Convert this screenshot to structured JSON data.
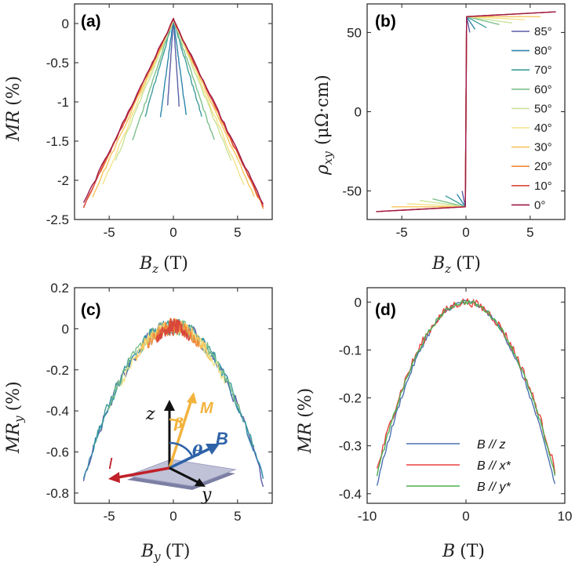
{
  "chart_data": [
    {
      "panel": "(a)",
      "type": "line",
      "xlabel": "B_z (T)",
      "ylabel": "MR (%)",
      "xlim": [
        -7.7,
        7.7
      ],
      "ylim": [
        -2.5,
        0.25
      ],
      "xticks": [
        -5,
        0,
        5
      ],
      "yticks": [
        0,
        -0.5,
        -1,
        -1.5,
        -2,
        -2.5
      ],
      "ytick_labels": [
        "0",
        "-0.5",
        "-1",
        "-1.5",
        "-2",
        "-2.5"
      ],
      "series": [
        {
          "angle": 85,
          "color": "#5b5ea6",
          "x_extent": 0.45,
          "y_end": -1.05
        },
        {
          "angle": 80,
          "color": "#2e86ab",
          "x_extent": 1.0,
          "y_end": -1.18
        },
        {
          "angle": 70,
          "color": "#3f9e9a",
          "x_extent": 2.2,
          "y_end": -1.18
        },
        {
          "angle": 60,
          "color": "#7cc08a",
          "x_extent": 3.2,
          "y_end": -1.5
        },
        {
          "angle": 50,
          "color": "#c9e39a",
          "x_extent": 4.5,
          "y_end": -1.75
        },
        {
          "angle": 40,
          "color": "#f3e38a",
          "x_extent": 5.5,
          "y_end": -2.05
        },
        {
          "angle": 30,
          "color": "#f7c45d",
          "x_extent": 6.3,
          "y_end": -2.2
        },
        {
          "angle": 20,
          "color": "#ef8a3c",
          "x_extent": 7.0,
          "y_end": -2.35
        },
        {
          "angle": 10,
          "color": "#d9483b",
          "x_extent": 7.0,
          "y_end": -2.33
        },
        {
          "angle": 0,
          "color": "#9e1a4b",
          "x_extent": 7.0,
          "y_end": -2.3
        }
      ]
    },
    {
      "panel": "(b)",
      "type": "line",
      "xlabel": "B_z (T)",
      "ylabel": "ρ_xy (μΩ·cm)",
      "xlim": [
        -7.7,
        7.7
      ],
      "ylim": [
        -68,
        68
      ],
      "xticks": [
        -5,
        0,
        5
      ],
      "yticks": [
        50,
        0,
        -50
      ],
      "jump_value": 60,
      "series_end_values": [
        {
          "angle": 85,
          "color": "#5b5ea6",
          "x_extent": 0.3,
          "y_end": 50
        },
        {
          "angle": 80,
          "color": "#2e86ab",
          "x_extent": 0.7,
          "y_end": 52
        },
        {
          "angle": 70,
          "color": "#3f9e9a",
          "x_extent": 1.6,
          "y_end": 53
        },
        {
          "angle": 60,
          "color": "#7cc08a",
          "x_extent": 2.6,
          "y_end": 55
        },
        {
          "angle": 50,
          "color": "#c9e39a",
          "x_extent": 3.6,
          "y_end": 56
        },
        {
          "angle": 40,
          "color": "#f3e38a",
          "x_extent": 4.6,
          "y_end": 58
        },
        {
          "angle": 30,
          "color": "#f7c45d",
          "x_extent": 5.8,
          "y_end": 60
        },
        {
          "angle": 20,
          "color": "#ef8a3c",
          "x_extent": 7.0,
          "y_end": 63
        },
        {
          "angle": 10,
          "color": "#d9483b",
          "x_extent": 7.0,
          "y_end": 63
        },
        {
          "angle": 0,
          "color": "#9e1a4b",
          "x_extent": 7.0,
          "y_end": 63
        }
      ],
      "legend": [
        "85°",
        "80°",
        "70°",
        "60°",
        "50°",
        "40°",
        "30°",
        "20°",
        "10°",
        "0°"
      ]
    },
    {
      "panel": "(c)",
      "type": "line",
      "xlabel": "B_y (T)",
      "ylabel": "MR_y (%)",
      "xlim": [
        -7.7,
        7.7
      ],
      "ylim": [
        -0.85,
        0.2
      ],
      "xticks": [
        -5,
        0,
        5
      ],
      "yticks": [
        0.2,
        0,
        -0.2,
        -0.4,
        -0.6,
        -0.8
      ],
      "ytick_labels": [
        "0.2",
        "0",
        "-0.2",
        "-0.4",
        "-0.6",
        "-0.8"
      ],
      "series": [
        {
          "color": "#5b5ea6",
          "x_extent": 7.0,
          "y_end": -0.75
        },
        {
          "color": "#2e86ab",
          "x_extent": 7.0,
          "y_end": -0.73
        },
        {
          "color": "#3f9e9a",
          "x_extent": 6.3,
          "y_end": -0.58
        },
        {
          "color": "#7cc08a",
          "x_extent": 5.2,
          "y_end": -0.4
        },
        {
          "color": "#f3e38a",
          "x_extent": 4.0,
          "y_end": -0.26
        },
        {
          "color": "#f7c45d",
          "x_extent": 3.0,
          "y_end": -0.15
        },
        {
          "color": "#ef8a3c",
          "x_extent": 2.0,
          "y_end": -0.08
        },
        {
          "color": "#d9483b",
          "x_extent": 1.3,
          "y_end": -0.05
        }
      ],
      "inset_labels": {
        "z": "z",
        "y": "y",
        "B": "B",
        "M": "M",
        "theta": "θ",
        "beta": "β",
        "I": "I"
      }
    },
    {
      "panel": "(d)",
      "type": "line",
      "xlabel": "B (T)",
      "ylabel": "MR (%)",
      "xlim": [
        -10,
        10
      ],
      "ylim": [
        -0.42,
        0.03
      ],
      "xticks": [
        -10,
        0,
        10
      ],
      "yticks": [
        0,
        -0.1,
        -0.2,
        -0.3,
        -0.4
      ],
      "ytick_labels": [
        "0",
        "-0.1",
        "-0.2",
        "-0.3",
        "-0.4"
      ],
      "series": [
        {
          "name": "B // z",
          "color": "#4c72b0",
          "x_extent": 9.0,
          "y_end": -0.38
        },
        {
          "name": "B // x*",
          "color": "#e8403f",
          "x_extent": 9.0,
          "y_end": -0.35
        },
        {
          "name": "B // y*",
          "color": "#4caf50",
          "x_extent": 9.0,
          "y_end": -0.36
        }
      ]
    }
  ],
  "labels": {
    "a": "(a)",
    "b": "(b)",
    "c": "(c)",
    "d": "(d)",
    "a_x": "B",
    "a_x_sub": "z",
    "a_x_unit": "(T)",
    "a_y": "MR",
    "a_y_unit": "(%)",
    "b_x": "B",
    "b_x_sub": "z",
    "b_x_unit": "(T)",
    "b_y": "ρ",
    "b_y_sub": "xy",
    "b_y_unit": "(μΩ·cm)",
    "c_x": "B",
    "c_x_sub": "y",
    "c_x_unit": "(T)",
    "c_y": "MR",
    "c_y_sub": "y",
    "c_y_unit": "(%)",
    "d_x": "B",
    "d_x_unit": "(T)",
    "d_y": "MR",
    "d_y_unit": "(%)",
    "leg_d": [
      "B // z",
      "B // x*",
      "B // y*"
    ]
  }
}
